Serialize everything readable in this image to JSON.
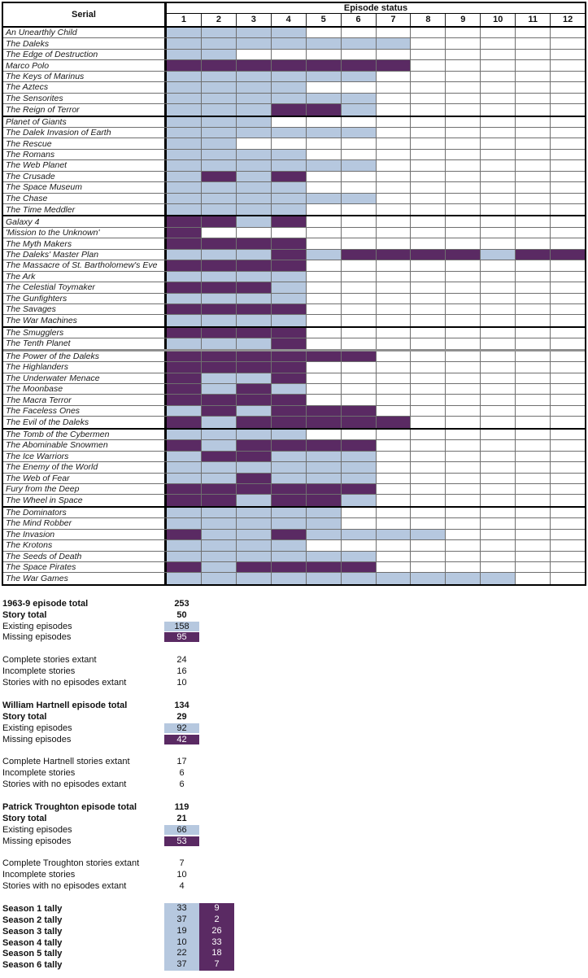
{
  "chart_data": {
    "type": "heatmap",
    "title": "Episode status",
    "row_header": "Serial",
    "columns": [
      "1",
      "2",
      "3",
      "4",
      "5",
      "6",
      "7",
      "8",
      "9",
      "10",
      "11",
      "12"
    ],
    "legend": {
      "existing_color": "#b6c8df",
      "missing_color": "#5a2a63"
    },
    "seasons": [
      {
        "name": "Season 1",
        "serials": [
          {
            "name": "An Unearthly Child",
            "status": [
              "existing",
              "existing",
              "existing",
              "existing"
            ]
          },
          {
            "name": "The Daleks",
            "status": [
              "existing",
              "existing",
              "existing",
              "existing",
              "existing",
              "existing",
              "existing"
            ]
          },
          {
            "name": "The Edge of Destruction",
            "status": [
              "existing",
              "existing"
            ]
          },
          {
            "name": "Marco Polo",
            "status": [
              "missing",
              "missing",
              "missing",
              "missing",
              "missing",
              "missing",
              "missing"
            ]
          },
          {
            "name": "The Keys of Marinus",
            "status": [
              "existing",
              "existing",
              "existing",
              "existing",
              "existing",
              "existing"
            ]
          },
          {
            "name": "The Aztecs",
            "status": [
              "existing",
              "existing",
              "existing",
              "existing"
            ]
          },
          {
            "name": "The Sensorites",
            "status": [
              "existing",
              "existing",
              "existing",
              "existing",
              "existing",
              "existing"
            ]
          },
          {
            "name": "The Reign of Terror",
            "status": [
              "existing",
              "existing",
              "existing",
              "missing",
              "missing",
              "existing"
            ]
          }
        ]
      },
      {
        "name": "Season 2",
        "serials": [
          {
            "name": "Planet of Giants",
            "status": [
              "existing",
              "existing",
              "existing"
            ]
          },
          {
            "name": "The Dalek Invasion of Earth",
            "status": [
              "existing",
              "existing",
              "existing",
              "existing",
              "existing",
              "existing"
            ]
          },
          {
            "name": "The Rescue",
            "status": [
              "existing",
              "existing"
            ]
          },
          {
            "name": "The Romans",
            "status": [
              "existing",
              "existing",
              "existing",
              "existing"
            ]
          },
          {
            "name": "The Web Planet",
            "status": [
              "existing",
              "existing",
              "existing",
              "existing",
              "existing",
              "existing"
            ]
          },
          {
            "name": "The Crusade",
            "status": [
              "existing",
              "missing",
              "existing",
              "missing"
            ]
          },
          {
            "name": "The Space Museum",
            "status": [
              "existing",
              "existing",
              "existing",
              "existing"
            ]
          },
          {
            "name": "The Chase",
            "status": [
              "existing",
              "existing",
              "existing",
              "existing",
              "existing",
              "existing"
            ]
          },
          {
            "name": "The Time Meddler",
            "status": [
              "existing",
              "existing",
              "existing",
              "existing"
            ]
          }
        ]
      },
      {
        "name": "Season 3",
        "serials": [
          {
            "name": "Galaxy 4",
            "status": [
              "missing",
              "missing",
              "existing",
              "missing"
            ]
          },
          {
            "name": "'Mission to the Unknown'",
            "status": [
              "missing"
            ]
          },
          {
            "name": "The Myth Makers",
            "status": [
              "missing",
              "missing",
              "missing",
              "missing"
            ]
          },
          {
            "name": "The Daleks' Master Plan",
            "status": [
              "existing",
              "existing",
              "existing",
              "missing",
              "existing",
              "missing",
              "missing",
              "missing",
              "missing",
              "existing",
              "missing",
              "missing"
            ]
          },
          {
            "name": "The Massacre of St. Bartholomew's Eve",
            "status": [
              "missing",
              "missing",
              "missing",
              "missing"
            ]
          },
          {
            "name": "The Ark",
            "status": [
              "existing",
              "existing",
              "existing",
              "existing"
            ]
          },
          {
            "name": "The Celestial Toymaker",
            "status": [
              "missing",
              "missing",
              "missing",
              "existing"
            ]
          },
          {
            "name": "The Gunfighters",
            "status": [
              "existing",
              "existing",
              "existing",
              "existing"
            ]
          },
          {
            "name": "The Savages",
            "status": [
              "missing",
              "missing",
              "missing",
              "missing"
            ]
          },
          {
            "name": "The War Machines",
            "status": [
              "existing",
              "existing",
              "existing",
              "existing"
            ]
          }
        ]
      },
      {
        "name": "Season 4",
        "serials": [
          {
            "name": "The Smugglers",
            "status": [
              "missing",
              "missing",
              "missing",
              "missing"
            ]
          },
          {
            "name": "The Tenth Planet",
            "status": [
              "existing",
              "existing",
              "existing",
              "missing"
            ],
            "divider_after": true
          },
          {
            "name": "The Power of the Daleks",
            "status": [
              "missing",
              "missing",
              "missing",
              "missing",
              "missing",
              "missing"
            ]
          },
          {
            "name": "The Highlanders",
            "status": [
              "missing",
              "missing",
              "missing",
              "missing"
            ]
          },
          {
            "name": "The Underwater Menace",
            "status": [
              "missing",
              "existing",
              "existing",
              "missing"
            ]
          },
          {
            "name": "The Moonbase",
            "status": [
              "missing",
              "existing",
              "missing",
              "existing"
            ]
          },
          {
            "name": "The Macra Terror",
            "status": [
              "missing",
              "missing",
              "missing",
              "missing"
            ]
          },
          {
            "name": "The Faceless Ones",
            "status": [
              "existing",
              "missing",
              "existing",
              "missing",
              "missing",
              "missing"
            ]
          },
          {
            "name": "The Evil of the Daleks",
            "status": [
              "missing",
              "existing",
              "missing",
              "missing",
              "missing",
              "missing",
              "missing"
            ]
          }
        ]
      },
      {
        "name": "Season 5",
        "serials": [
          {
            "name": "The Tomb of the Cybermen",
            "status": [
              "existing",
              "existing",
              "existing",
              "existing"
            ]
          },
          {
            "name": "The Abominable Snowmen",
            "status": [
              "missing",
              "existing",
              "missing",
              "missing",
              "missing",
              "missing"
            ]
          },
          {
            "name": "The Ice Warriors",
            "status": [
              "existing",
              "missing",
              "missing",
              "existing",
              "existing",
              "existing"
            ]
          },
          {
            "name": "The Enemy of the World",
            "status": [
              "existing",
              "existing",
              "existing",
              "existing",
              "existing",
              "existing"
            ]
          },
          {
            "name": "The Web of Fear",
            "status": [
              "existing",
              "existing",
              "missing",
              "existing",
              "existing",
              "existing"
            ]
          },
          {
            "name": "Fury from the Deep",
            "status": [
              "missing",
              "missing",
              "missing",
              "missing",
              "missing",
              "missing"
            ]
          },
          {
            "name": "The Wheel in Space",
            "status": [
              "missing",
              "missing",
              "existing",
              "missing",
              "missing",
              "existing"
            ]
          }
        ]
      },
      {
        "name": "Season 6",
        "serials": [
          {
            "name": "The Dominators",
            "status": [
              "existing",
              "existing",
              "existing",
              "existing",
              "existing"
            ]
          },
          {
            "name": "The Mind Robber",
            "status": [
              "existing",
              "existing",
              "existing",
              "existing",
              "existing"
            ]
          },
          {
            "name": "The Invasion",
            "status": [
              "missing",
              "existing",
              "existing",
              "missing",
              "existing",
              "existing",
              "existing",
              "existing"
            ]
          },
          {
            "name": "The Krotons",
            "status": [
              "existing",
              "existing",
              "existing",
              "existing"
            ]
          },
          {
            "name": "The Seeds of Death",
            "status": [
              "existing",
              "existing",
              "existing",
              "existing",
              "existing",
              "existing"
            ]
          },
          {
            "name": "The Space Pirates",
            "status": [
              "missing",
              "existing",
              "missing",
              "missing",
              "missing",
              "missing"
            ]
          },
          {
            "name": "The War Games",
            "status": [
              "existing",
              "existing",
              "existing",
              "existing",
              "existing",
              "existing",
              "existing",
              "existing",
              "existing",
              "existing"
            ]
          }
        ]
      }
    ],
    "summary_blocks": [
      {
        "totals": [
          {
            "label": "1963-9 episode total",
            "value": "253",
            "style": "bold"
          },
          {
            "label": "Story total",
            "value": "50",
            "style": "bold"
          },
          {
            "label": "Existing episodes",
            "value": "158",
            "style": "existing"
          },
          {
            "label": "Missing episodes",
            "value": "95",
            "style": "missing"
          }
        ],
        "extant": [
          {
            "label": "Complete stories extant",
            "value": "24"
          },
          {
            "label": "Incomplete stories",
            "value": "16"
          },
          {
            "label": "Stories with no episodes extant",
            "value": "10"
          }
        ]
      },
      {
        "totals": [
          {
            "label": "William Hartnell episode total",
            "value": "134",
            "style": "bold"
          },
          {
            "label": "Story total",
            "value": "29",
            "style": "bold"
          },
          {
            "label": "Existing episodes",
            "value": "92",
            "style": "existing"
          },
          {
            "label": "Missing episodes",
            "value": "42",
            "style": "missing"
          }
        ],
        "extant": [
          {
            "label": "Complete Hartnell stories extant",
            "value": "17"
          },
          {
            "label": "Incomplete stories",
            "value": "6"
          },
          {
            "label": "Stories with no episodes extant",
            "value": "6"
          }
        ]
      },
      {
        "totals": [
          {
            "label": "Patrick Troughton episode total",
            "value": "119",
            "style": "bold"
          },
          {
            "label": "Story total",
            "value": "21",
            "style": "bold"
          },
          {
            "label": "Existing episodes",
            "value": "66",
            "style": "existing"
          },
          {
            "label": "Missing episodes",
            "value": "53",
            "style": "missing"
          }
        ],
        "extant": [
          {
            "label": "Complete Troughton stories extant",
            "value": "7"
          },
          {
            "label": "Incomplete stories",
            "value": "10"
          },
          {
            "label": "Stories with no episodes extant",
            "value": "4"
          }
        ]
      }
    ],
    "season_tallies": [
      {
        "label": "Season 1 tally",
        "existing": "33",
        "missing": "9"
      },
      {
        "label": "Season 2 tally",
        "existing": "37",
        "missing": "2"
      },
      {
        "label": "Season 3 tally",
        "existing": "19",
        "missing": "26"
      },
      {
        "label": "Season 4 tally",
        "existing": "10",
        "missing": "33"
      },
      {
        "label": "Season 5 tally",
        "existing": "22",
        "missing": "18"
      },
      {
        "label": "Season 6 tally",
        "existing": "37",
        "missing": "7"
      }
    ]
  }
}
